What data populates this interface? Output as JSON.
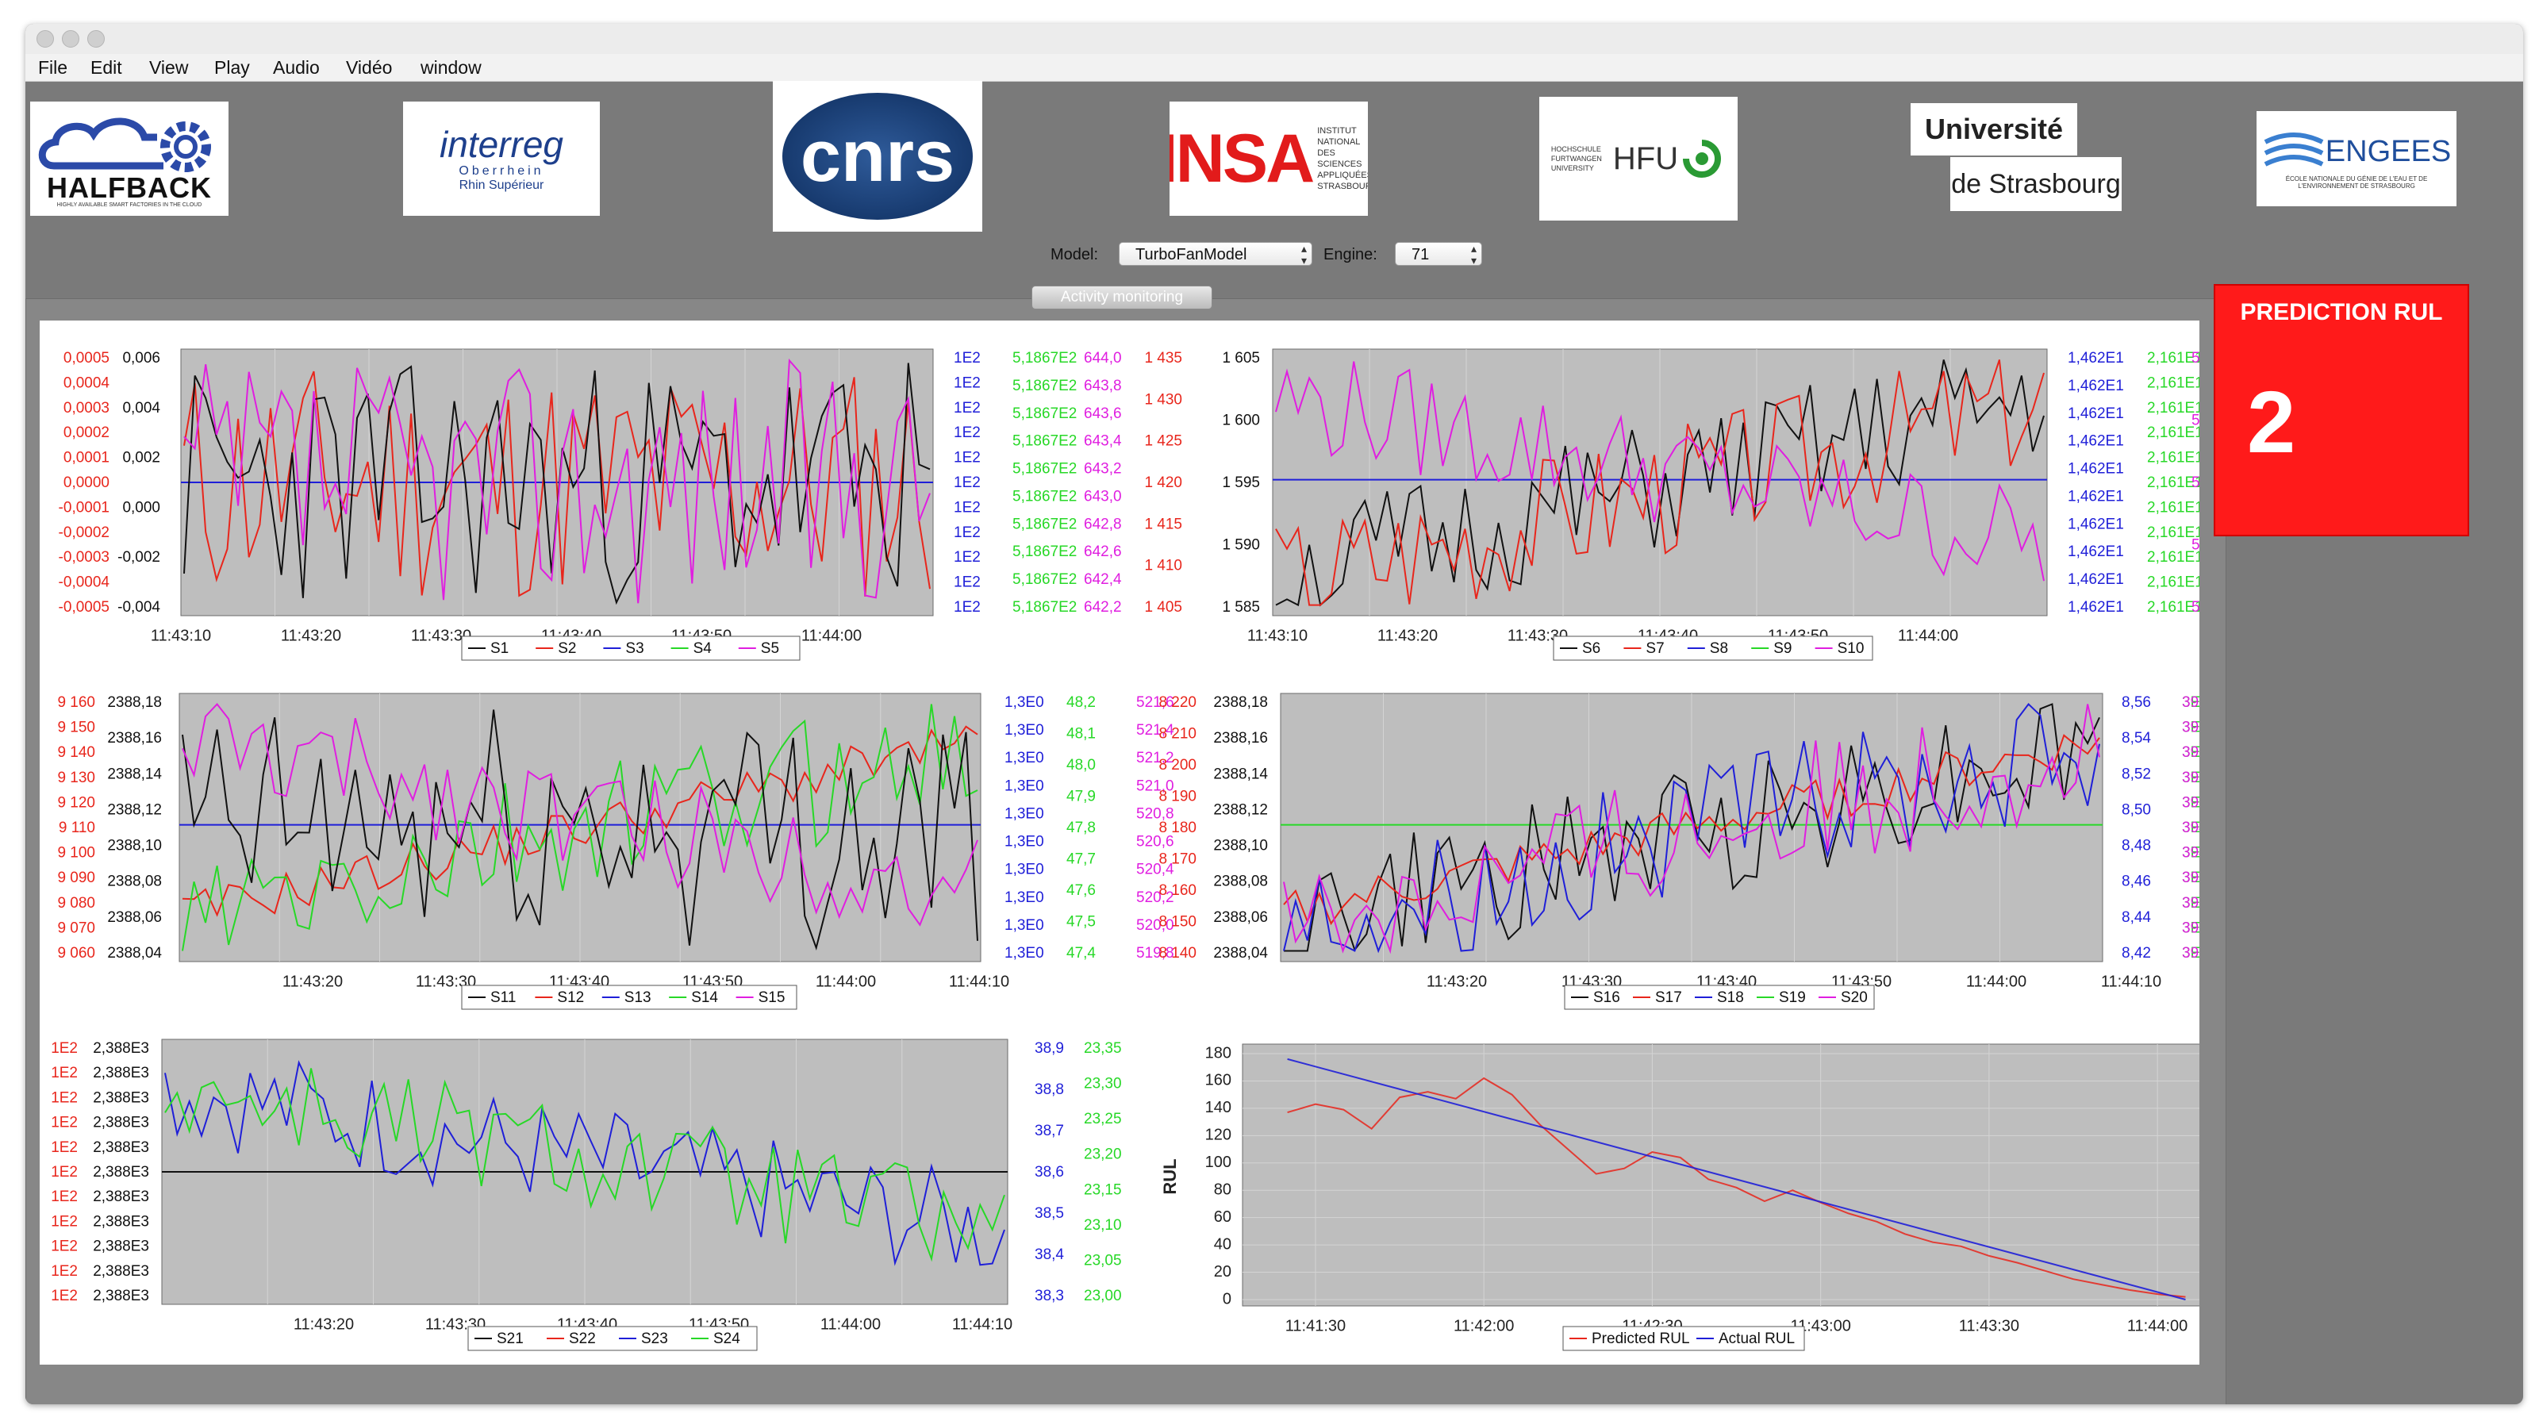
{
  "menu": [
    "File",
    "Edit",
    "View",
    "Play",
    "Audio",
    "Vidéo",
    "window"
  ],
  "logos": {
    "halfback": "HALFBACK",
    "halfback_sub": "HIGHLY AVAILABLE SMART FACTORIES IN THE CLOUD",
    "interreg": "interreg",
    "interreg_sub1": "Oberrhein",
    "interreg_sub2": "Rhin Supérieur",
    "cnrs": "cnrs",
    "insa": "INSA",
    "insa_text": "INSTITUT NATIONAL DES SCIENCES APPLIQUÉES STRASBOURG",
    "hfu": "HFU",
    "hfu_text": "HOCHSCHULE FURTWANGEN UNIVERSITY",
    "unistra_1": "Université",
    "unistra_2": "de Strasbourg",
    "engees": "ENGEES",
    "engees_sub": "ÉCOLE NATIONALE DU GÉNIE DE L'EAU ET DE L'ENVIRONNEMENT DE STRASBOURG"
  },
  "controls": {
    "model_label": "Model:",
    "model_value": "TurboFanModel",
    "engine_label": "Engine:",
    "engine_value": "71",
    "tab_label": "Activity monitoring"
  },
  "prediction": {
    "title": "PREDICTION RUL",
    "value": "2"
  },
  "colors": {
    "red": "#e8261c",
    "black": "#111111",
    "blue": "#1f1fd8",
    "green": "#27d827",
    "magenta": "#e01ee0",
    "rul_box": "#ff1a1a",
    "plot_bg": "#bebebe"
  },
  "chart_data": [
    {
      "type": "line",
      "series": [
        {
          "name": "S1"
        },
        {
          "name": "S2"
        },
        {
          "name": "S3"
        },
        {
          "name": "S4"
        },
        {
          "name": "S5"
        }
      ],
      "x_ticks": [
        "11:43:10",
        "11:43:20",
        "11:43:30",
        "11:43:40",
        "11:43:50",
        "11:44:00"
      ],
      "axes": [
        {
          "color": "red",
          "ticks": [
            "0,0005",
            "0,0004",
            "0,0003",
            "0,0002",
            "0,0001",
            "0,0000",
            "-0,0001",
            "-0,0002",
            "-0,0003",
            "-0,0004",
            "-0,0005"
          ]
        },
        {
          "color": "black",
          "ticks": [
            "0,006",
            "0,004",
            "0,002",
            "0,000",
            "-0,002",
            "-0,004"
          ]
        },
        {
          "color": "blue",
          "ticks": [
            "1E2",
            "1E2",
            "1E2",
            "1E2",
            "1E2",
            "1E2",
            "1E2",
            "1E2",
            "1E2",
            "1E2",
            "1E2"
          ]
        },
        {
          "color": "green",
          "ticks": [
            "5,1867E2",
            "5,1867E2",
            "5,1867E2",
            "5,1867E2",
            "5,1867E2",
            "5,1867E2",
            "5,1867E2",
            "5,1867E2",
            "5,1867E2",
            "5,1867E2"
          ]
        },
        {
          "color": "magenta",
          "ticks": [
            "644,0",
            "643,8",
            "643,6",
            "643,4",
            "643,2",
            "643,0",
            "642,8",
            "642,6",
            "642,4",
            "642,2"
          ]
        }
      ]
    },
    {
      "type": "line",
      "series": [
        {
          "name": "S6"
        },
        {
          "name": "S7"
        },
        {
          "name": "S8"
        },
        {
          "name": "S9"
        },
        {
          "name": "S10"
        }
      ],
      "x_ticks": [
        "11:43:10",
        "11:43:20",
        "11:43:30",
        "11:43:40",
        "11:43:50",
        "11:44:00"
      ],
      "axes": [
        {
          "color": "red",
          "ticks": [
            "1 435",
            "1 430",
            "1 425",
            "1 420",
            "1 415",
            "1 410",
            "1 405"
          ]
        },
        {
          "color": "black",
          "ticks": [
            "1 605",
            "1 600",
            "1 595",
            "1 590",
            "1 585"
          ]
        },
        {
          "color": "blue",
          "ticks": [
            "1,462E1",
            "1,462E1",
            "1,462E1",
            "1,462E1",
            "1,462E1",
            "1,462E1",
            "1,462E1",
            "1,462E1",
            "1,462E1",
            "1,462E1"
          ]
        },
        {
          "color": "green",
          "ticks": [
            "2,161E1",
            "2,161E1",
            "2,161E1",
            "2,161E1",
            "2,161E1",
            "2,161E1",
            "2,161E1",
            "2,161E1",
            "2,161E1",
            "2,161E1",
            "2,161E1"
          ]
        },
        {
          "color": "magenta",
          "ticks": [
            "553,5",
            "553,0",
            "552,5",
            "552,0",
            "551,5"
          ]
        }
      ]
    },
    {
      "type": "line",
      "series": [
        {
          "name": "S11"
        },
        {
          "name": "S12"
        },
        {
          "name": "S13"
        },
        {
          "name": "S14"
        },
        {
          "name": "S15"
        }
      ],
      "x_ticks": [
        "11:43:20",
        "11:43:30",
        "11:43:40",
        "11:43:50",
        "11:44:00",
        "11:44:10"
      ],
      "axes": [
        {
          "color": "red",
          "ticks": [
            "9 160",
            "9 150",
            "9 140",
            "9 130",
            "9 120",
            "9 110",
            "9 100",
            "9 090",
            "9 080",
            "9 070",
            "9 060"
          ]
        },
        {
          "color": "black",
          "ticks": [
            "2388,18",
            "2388,16",
            "2388,14",
            "2388,12",
            "2388,10",
            "2388,08",
            "2388,06",
            "2388,04"
          ]
        },
        {
          "color": "blue",
          "ticks": [
            "1,3E0",
            "1,3E0",
            "1,3E0",
            "1,3E0",
            "1,3E0",
            "1,3E0",
            "1,3E0",
            "1,3E0",
            "1,3E0",
            "1,3E0"
          ]
        },
        {
          "color": "green",
          "ticks": [
            "48,2",
            "48,1",
            "48,0",
            "47,9",
            "47,8",
            "47,7",
            "47,6",
            "47,5",
            "47,4"
          ]
        },
        {
          "color": "magenta",
          "ticks": [
            "521,6",
            "521,4",
            "521,2",
            "521,0",
            "520,8",
            "520,6",
            "520,4",
            "520,2",
            "520,0",
            "519,8"
          ]
        }
      ]
    },
    {
      "type": "line",
      "series": [
        {
          "name": "S16"
        },
        {
          "name": "S17"
        },
        {
          "name": "S18"
        },
        {
          "name": "S19"
        },
        {
          "name": "S20"
        }
      ],
      "x_ticks": [
        "11:43:20",
        "11:43:30",
        "11:43:40",
        "11:43:50",
        "11:44:00",
        "11:44:10"
      ],
      "axes": [
        {
          "color": "red",
          "ticks": [
            "8 220",
            "8 210",
            "8 200",
            "8 190",
            "8 180",
            "8 170",
            "8 160",
            "8 150",
            "8 140"
          ]
        },
        {
          "color": "black",
          "ticks": [
            "2388,18",
            "2388,16",
            "2388,14",
            "2388,12",
            "2388,10",
            "2388,08",
            "2388,06",
            "2388,04"
          ]
        },
        {
          "color": "blue",
          "ticks": [
            "8,56",
            "8,54",
            "8,52",
            "8,50",
            "8,48",
            "8,46",
            "8,44",
            "8,42"
          ]
        },
        {
          "color": "green",
          "ticks": [
            "3E-2",
            "3E-2",
            "3E-2",
            "3E-2",
            "3E-2",
            "3E-2",
            "3E-2",
            "3E-2",
            "3E-2",
            "3E-2",
            "3E-2"
          ]
        },
        {
          "color": "magenta",
          "ticks": [
            "397,0",
            "396,5",
            "396,0",
            "395,5",
            "395,0",
            "394,5",
            "394,0",
            "393,5",
            "393,0",
            "392,5",
            "392,0"
          ]
        }
      ]
    },
    {
      "type": "line",
      "series": [
        {
          "name": "S21"
        },
        {
          "name": "S22"
        },
        {
          "name": "S23"
        },
        {
          "name": "S24"
        }
      ],
      "x_ticks": [
        "11:43:20",
        "11:43:30",
        "11:43:40",
        "11:43:50",
        "11:44:00",
        "11:44:10"
      ],
      "axes": [
        {
          "color": "red",
          "ticks": [
            "1E2",
            "1E2",
            "1E2",
            "1E2",
            "1E2",
            "1E2",
            "1E2",
            "1E2",
            "1E2",
            "1E2",
            "1E2"
          ]
        },
        {
          "color": "black",
          "ticks": [
            "2,388E3",
            "2,388E3",
            "2,388E3",
            "2,388E3",
            "2,388E3",
            "2,388E3",
            "2,388E3",
            "2,388E3",
            "2,388E3",
            "2,388E3",
            "2,388E3"
          ]
        },
        {
          "color": "blue",
          "ticks": [
            "38,9",
            "38,8",
            "38,7",
            "38,6",
            "38,5",
            "38,4",
            "38,3"
          ]
        },
        {
          "color": "green",
          "ticks": [
            "23,35",
            "23,30",
            "23,25",
            "23,20",
            "23,15",
            "23,10",
            "23,05",
            "23,00"
          ]
        }
      ]
    },
    {
      "type": "line",
      "ylabel": "RUL",
      "ylim": [
        0,
        180
      ],
      "y_ticks": [
        "180",
        "160",
        "140",
        "120",
        "100",
        "80",
        "60",
        "40",
        "20",
        "0"
      ],
      "x_ticks": [
        "11:41:30",
        "11:42:00",
        "11:42:30",
        "11:43:00",
        "11:43:30",
        "11:44:00"
      ],
      "series": [
        {
          "name": "Predicted RUL",
          "color": "red",
          "points": [
            [
              "11:41:25",
              137
            ],
            [
              "11:41:30",
              143
            ],
            [
              "11:41:35",
              139
            ],
            [
              "11:41:40",
              125
            ],
            [
              "11:41:45",
              148
            ],
            [
              "11:41:50",
              152
            ],
            [
              "11:41:55",
              147
            ],
            [
              "11:42:00",
              162
            ],
            [
              "11:42:05",
              150
            ],
            [
              "11:42:10",
              128
            ],
            [
              "11:42:15",
              110
            ],
            [
              "11:42:20",
              92
            ],
            [
              "11:42:25",
              96
            ],
            [
              "11:42:30",
              108
            ],
            [
              "11:42:35",
              104
            ],
            [
              "11:42:40",
              88
            ],
            [
              "11:42:45",
              82
            ],
            [
              "11:42:50",
              72
            ],
            [
              "11:42:55",
              80
            ],
            [
              "11:43:00",
              71
            ],
            [
              "11:43:05",
              63
            ],
            [
              "11:43:10",
              57
            ],
            [
              "11:43:15",
              48
            ],
            [
              "11:43:20",
              42
            ],
            [
              "11:43:25",
              39
            ],
            [
              "11:43:30",
              32
            ],
            [
              "11:43:35",
              27
            ],
            [
              "11:43:40",
              21
            ],
            [
              "11:43:45",
              15
            ],
            [
              "11:43:50",
              11
            ],
            [
              "11:43:55",
              7
            ],
            [
              "11:44:00",
              4
            ],
            [
              "11:44:05",
              2
            ]
          ]
        },
        {
          "name": "Actual RUL",
          "color": "blue",
          "points": [
            [
              "11:41:25",
              176
            ],
            [
              "11:44:05",
              0
            ]
          ]
        }
      ]
    }
  ]
}
